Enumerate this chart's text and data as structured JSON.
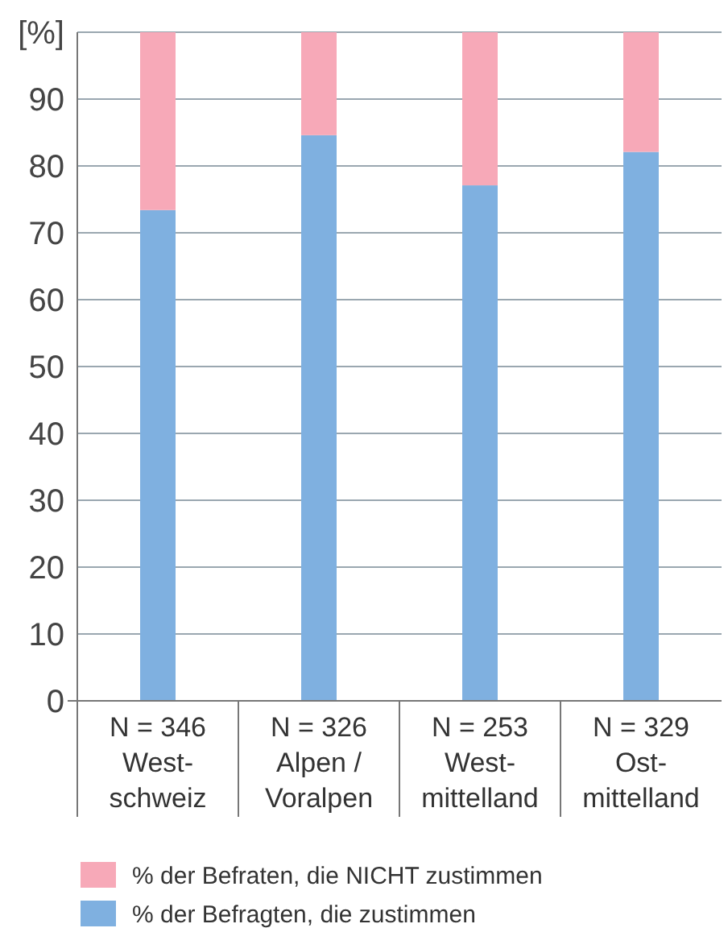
{
  "chart_data": {
    "type": "bar",
    "stacked": true,
    "categories": [
      "N = 346\nWest-\nschweiz",
      "N = 326\nAlpen /\nVoralpen",
      "N = 253\nWest-\nmittelland",
      "N = 329\nOst-\nmittelland"
    ],
    "series": [
      {
        "name": "% der Befragten, die zustimmen",
        "color": "#7fb0e0",
        "values": [
          73.4,
          84.6,
          77.1,
          82.1
        ]
      },
      {
        "name": "% der Befraten, die NICHT zustimmen",
        "color": "#f7a9b8",
        "values": [
          26.6,
          15.4,
          22.9,
          17.9
        ]
      }
    ],
    "ylim": [
      0,
      100
    ],
    "yticks": [
      0,
      10,
      20,
      30,
      40,
      50,
      60,
      70,
      80,
      90,
      {
        "value": 100,
        "label": "[%]"
      }
    ],
    "grid": "y",
    "legend": "bottom"
  }
}
